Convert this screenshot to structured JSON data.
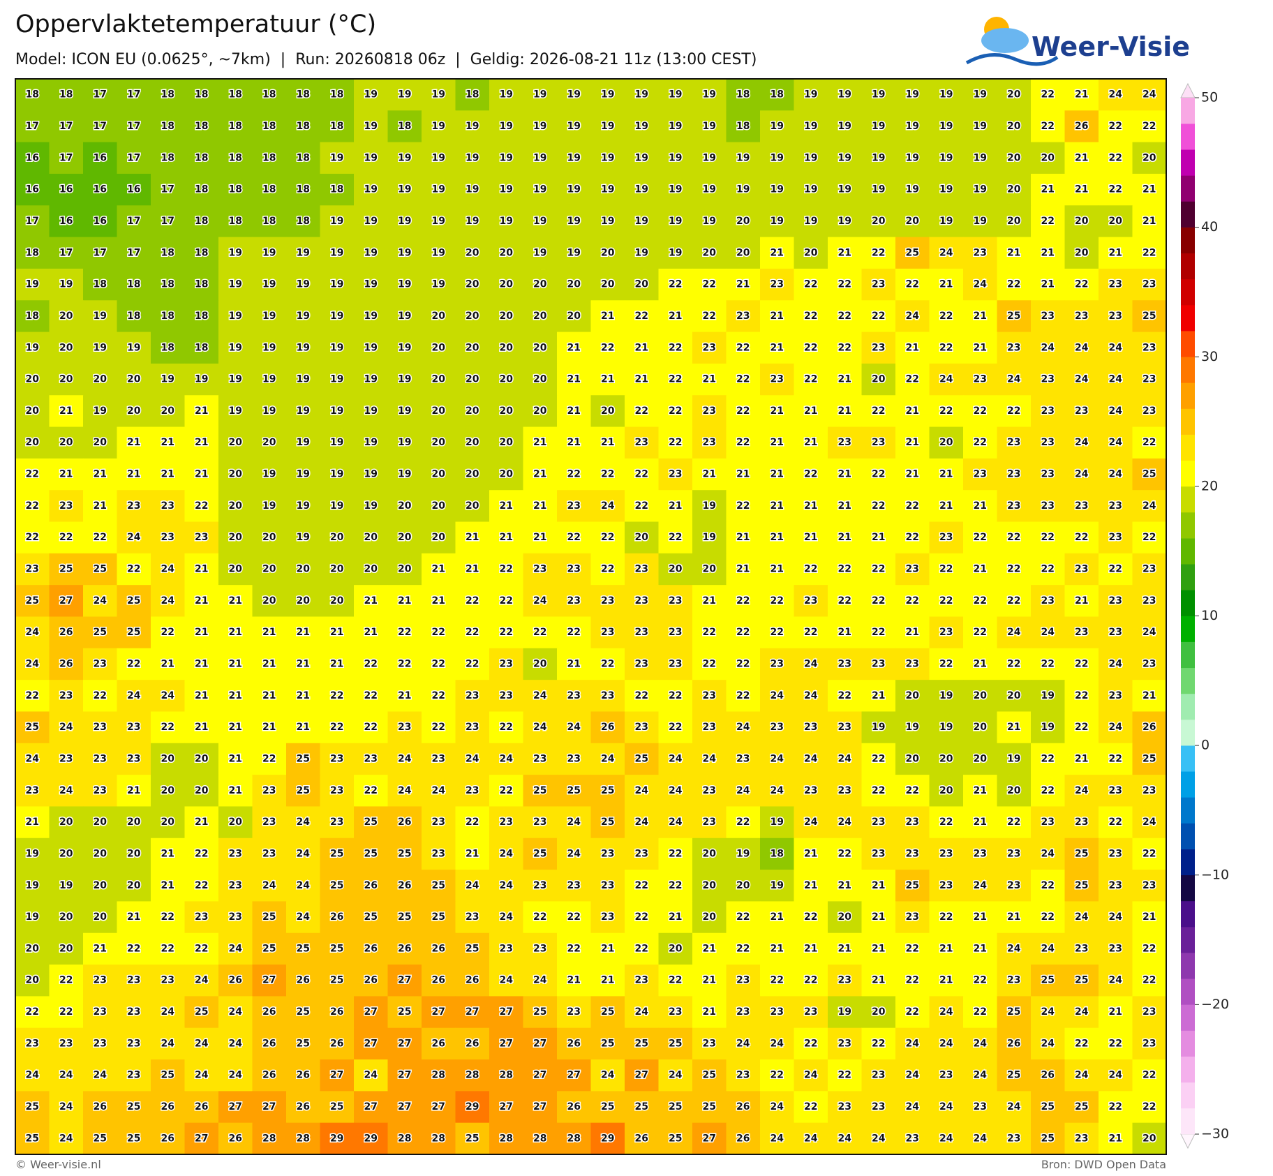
{
  "header": {
    "title": "Oppervlaktetemperatuur (°C)",
    "subtitle": "Model: ICON EU (0.0625°, ~7km)  |  Run: 20260818 06z  |  Geldig: 2026-08-21 11z (13:00 CEST)",
    "logo": "Weer-Visie"
  },
  "map": {
    "grid": [
      [
        18,
        18,
        17,
        17,
        18,
        18,
        18,
        18,
        18,
        18,
        19,
        19,
        19,
        18,
        19,
        19,
        19,
        19,
        19,
        19,
        19,
        18,
        18,
        19,
        19,
        19,
        19,
        19,
        19,
        20,
        22,
        21,
        24,
        24
      ],
      [
        17,
        17,
        17,
        17,
        18,
        18,
        18,
        18,
        18,
        18,
        19,
        18,
        19,
        19,
        19,
        19,
        19,
        19,
        19,
        19,
        19,
        18,
        19,
        19,
        19,
        19,
        19,
        19,
        19,
        20,
        22,
        26,
        22,
        22
      ],
      [
        16,
        17,
        16,
        17,
        18,
        18,
        18,
        18,
        18,
        19,
        19,
        19,
        19,
        19,
        19,
        19,
        19,
        19,
        19,
        19,
        19,
        19,
        19,
        19,
        19,
        19,
        19,
        19,
        19,
        20,
        20,
        21,
        22,
        20
      ],
      [
        16,
        16,
        16,
        16,
        17,
        18,
        18,
        18,
        18,
        18,
        19,
        19,
        19,
        19,
        19,
        19,
        19,
        19,
        19,
        19,
        19,
        19,
        19,
        19,
        19,
        19,
        19,
        19,
        19,
        20,
        21,
        21,
        22,
        21
      ],
      [
        17,
        16,
        16,
        17,
        17,
        18,
        18,
        18,
        18,
        19,
        19,
        19,
        19,
        19,
        19,
        19,
        19,
        19,
        19,
        19,
        19,
        20,
        19,
        19,
        19,
        20,
        20,
        19,
        19,
        20,
        22,
        20,
        20,
        21
      ],
      [
        18,
        17,
        17,
        17,
        18,
        18,
        19,
        19,
        19,
        19,
        19,
        19,
        19,
        20,
        20,
        19,
        19,
        20,
        19,
        19,
        20,
        20,
        21,
        20,
        21,
        22,
        25,
        24,
        23,
        21,
        21,
        20,
        21,
        22
      ],
      [
        19,
        19,
        18,
        18,
        18,
        18,
        19,
        19,
        19,
        19,
        19,
        19,
        19,
        20,
        20,
        20,
        20,
        20,
        20,
        22,
        22,
        21,
        23,
        22,
        22,
        23,
        22,
        21,
        24,
        22,
        21,
        22,
        23,
        23
      ],
      [
        18,
        20,
        19,
        18,
        18,
        18,
        19,
        19,
        19,
        19,
        19,
        19,
        20,
        20,
        20,
        20,
        20,
        21,
        22,
        21,
        22,
        23,
        21,
        22,
        22,
        22,
        24,
        22,
        21,
        25,
        23,
        23,
        23,
        25
      ],
      [
        19,
        20,
        19,
        19,
        18,
        18,
        19,
        19,
        19,
        19,
        19,
        19,
        20,
        20,
        20,
        20,
        21,
        22,
        21,
        22,
        23,
        22,
        21,
        22,
        22,
        23,
        21,
        22,
        21,
        23,
        24,
        24,
        24,
        23
      ],
      [
        20,
        20,
        20,
        20,
        19,
        19,
        19,
        19,
        19,
        19,
        19,
        19,
        20,
        20,
        20,
        20,
        21,
        21,
        21,
        22,
        21,
        22,
        23,
        22,
        21,
        20,
        22,
        24,
        23,
        24,
        23,
        24,
        24,
        23
      ],
      [
        20,
        21,
        19,
        20,
        20,
        21,
        19,
        19,
        19,
        19,
        19,
        19,
        20,
        20,
        20,
        20,
        21,
        20,
        22,
        22,
        23,
        22,
        21,
        21,
        21,
        22,
        21,
        22,
        22,
        22,
        23,
        23,
        24,
        23
      ],
      [
        20,
        20,
        20,
        21,
        21,
        21,
        20,
        20,
        19,
        19,
        19,
        19,
        20,
        20,
        20,
        21,
        21,
        21,
        23,
        22,
        23,
        22,
        21,
        21,
        23,
        23,
        21,
        20,
        22,
        23,
        23,
        24,
        24,
        22
      ],
      [
        22,
        21,
        21,
        21,
        21,
        21,
        20,
        19,
        19,
        19,
        19,
        19,
        20,
        20,
        20,
        21,
        22,
        22,
        22,
        23,
        21,
        21,
        21,
        22,
        21,
        22,
        21,
        21,
        23,
        23,
        23,
        24,
        24,
        25
      ],
      [
        22,
        23,
        21,
        23,
        23,
        22,
        20,
        19,
        19,
        19,
        19,
        20,
        20,
        20,
        21,
        21,
        23,
        24,
        22,
        21,
        19,
        22,
        21,
        21,
        21,
        22,
        22,
        21,
        21,
        23,
        23,
        23,
        23,
        24
      ],
      [
        22,
        22,
        22,
        24,
        23,
        23,
        20,
        20,
        19,
        20,
        20,
        20,
        20,
        21,
        21,
        21,
        22,
        22,
        20,
        22,
        19,
        21,
        21,
        21,
        21,
        21,
        22,
        23,
        22,
        22,
        22,
        22,
        23,
        22
      ],
      [
        23,
        25,
        25,
        22,
        24,
        21,
        20,
        20,
        20,
        20,
        20,
        20,
        21,
        21,
        22,
        23,
        23,
        22,
        23,
        20,
        20,
        21,
        21,
        22,
        22,
        22,
        23,
        22,
        21,
        22,
        22,
        23,
        22,
        23
      ],
      [
        25,
        27,
        24,
        25,
        24,
        21,
        21,
        20,
        20,
        20,
        21,
        21,
        21,
        22,
        22,
        24,
        23,
        23,
        23,
        23,
        21,
        22,
        22,
        23,
        22,
        22,
        22,
        22,
        22,
        22,
        23,
        21,
        23,
        23
      ],
      [
        24,
        26,
        25,
        25,
        22,
        21,
        21,
        21,
        21,
        21,
        21,
        22,
        22,
        22,
        22,
        22,
        22,
        23,
        23,
        23,
        22,
        22,
        22,
        22,
        21,
        22,
        21,
        23,
        22,
        24,
        24,
        23,
        23,
        24
      ],
      [
        24,
        26,
        23,
        22,
        21,
        21,
        21,
        21,
        21,
        21,
        22,
        22,
        22,
        22,
        23,
        20,
        21,
        22,
        23,
        23,
        22,
        22,
        23,
        24,
        23,
        23,
        23,
        22,
        21,
        22,
        22,
        22,
        24,
        23
      ],
      [
        22,
        23,
        22,
        24,
        24,
        21,
        21,
        21,
        21,
        22,
        22,
        21,
        22,
        23,
        23,
        24,
        23,
        23,
        22,
        22,
        23,
        22,
        24,
        24,
        22,
        21,
        20,
        19,
        20,
        20,
        19,
        22,
        23,
        21
      ],
      [
        25,
        24,
        23,
        23,
        22,
        21,
        21,
        21,
        21,
        22,
        22,
        23,
        22,
        23,
        22,
        24,
        24,
        26,
        23,
        22,
        23,
        24,
        23,
        23,
        23,
        19,
        19,
        19,
        20,
        21,
        19,
        22,
        24,
        26
      ],
      [
        24,
        23,
        23,
        23,
        20,
        20,
        21,
        22,
        25,
        23,
        23,
        24,
        23,
        24,
        24,
        23,
        23,
        24,
        25,
        24,
        24,
        23,
        24,
        24,
        24,
        22,
        20,
        20,
        20,
        19,
        22,
        21,
        22,
        25
      ],
      [
        23,
        24,
        23,
        21,
        20,
        20,
        21,
        23,
        25,
        23,
        22,
        24,
        24,
        23,
        22,
        25,
        25,
        25,
        24,
        24,
        23,
        24,
        24,
        23,
        23,
        22,
        22,
        20,
        21,
        20,
        22,
        24,
        23,
        23
      ],
      [
        21,
        20,
        20,
        20,
        20,
        21,
        20,
        23,
        24,
        23,
        25,
        26,
        23,
        22,
        23,
        23,
        24,
        25,
        24,
        24,
        23,
        22,
        19,
        24,
        24,
        23,
        23,
        22,
        21,
        22,
        23,
        23,
        22,
        24
      ],
      [
        19,
        20,
        20,
        20,
        21,
        22,
        23,
        23,
        24,
        25,
        25,
        25,
        23,
        21,
        24,
        25,
        24,
        23,
        23,
        22,
        20,
        19,
        18,
        21,
        22,
        23,
        23,
        23,
        23,
        23,
        24,
        25,
        23,
        22
      ],
      [
        19,
        19,
        20,
        20,
        21,
        22,
        23,
        24,
        24,
        25,
        26,
        26,
        25,
        24,
        24,
        23,
        23,
        23,
        22,
        22,
        20,
        20,
        19,
        21,
        21,
        21,
        25,
        23,
        24,
        23,
        22,
        25,
        23,
        23
      ],
      [
        19,
        20,
        20,
        21,
        22,
        23,
        23,
        25,
        24,
        26,
        25,
        25,
        25,
        23,
        24,
        22,
        22,
        23,
        22,
        21,
        20,
        22,
        21,
        22,
        20,
        21,
        23,
        22,
        21,
        21,
        22,
        24,
        24,
        21
      ],
      [
        20,
        20,
        21,
        22,
        22,
        22,
        24,
        25,
        25,
        25,
        26,
        26,
        26,
        25,
        23,
        23,
        22,
        21,
        22,
        20,
        21,
        22,
        21,
        21,
        21,
        21,
        22,
        21,
        21,
        24,
        24,
        23,
        23,
        22
      ],
      [
        20,
        22,
        23,
        23,
        23,
        24,
        26,
        27,
        26,
        25,
        26,
        27,
        26,
        26,
        24,
        24,
        21,
        21,
        23,
        22,
        21,
        23,
        22,
        22,
        23,
        21,
        22,
        21,
        22,
        23,
        25,
        25,
        24,
        22
      ],
      [
        22,
        22,
        23,
        23,
        24,
        25,
        24,
        26,
        25,
        26,
        27,
        25,
        27,
        27,
        27,
        25,
        23,
        25,
        24,
        23,
        21,
        23,
        23,
        23,
        19,
        20,
        22,
        24,
        22,
        25,
        24,
        24,
        21,
        23
      ],
      [
        23,
        23,
        23,
        23,
        24,
        24,
        24,
        26,
        25,
        26,
        27,
        27,
        26,
        26,
        27,
        27,
        26,
        25,
        25,
        25,
        23,
        24,
        24,
        22,
        23,
        22,
        24,
        24,
        24,
        26,
        24,
        22,
        22,
        23
      ],
      [
        24,
        24,
        24,
        23,
        25,
        24,
        24,
        26,
        26,
        27,
        24,
        27,
        28,
        28,
        28,
        27,
        27,
        24,
        27,
        24,
        25,
        23,
        22,
        24,
        22,
        23,
        24,
        23,
        24,
        25,
        26,
        24,
        24,
        22
      ],
      [
        25,
        24,
        26,
        25,
        26,
        26,
        27,
        27,
        26,
        25,
        27,
        27,
        27,
        29,
        27,
        27,
        26,
        25,
        25,
        25,
        25,
        26,
        24,
        22,
        23,
        23,
        24,
        24,
        23,
        24,
        25,
        25,
        22,
        22
      ],
      [
        25,
        24,
        25,
        25,
        26,
        27,
        26,
        28,
        28,
        29,
        29,
        28,
        28,
        25,
        28,
        28,
        28,
        29,
        26,
        25,
        27,
        26,
        24,
        24,
        24,
        24,
        23,
        24,
        24,
        23,
        25,
        23,
        21,
        20
      ]
    ]
  },
  "colorbar": {
    "lim": [
      -30,
      50
    ],
    "colors": [
      "#fde6f9",
      "#fbd0f4",
      "#f4b0ec",
      "#e48ce0",
      "#cc6cd4",
      "#b04fc2",
      "#8e38ae",
      "#6a2099",
      "#4a0f8a",
      "#140844",
      "#00208a",
      "#0050b0",
      "#0078cc",
      "#00a0e6",
      "#38c0f5",
      "#c8f8d4",
      "#a0ecb0",
      "#70d870",
      "#40c040",
      "#00b000",
      "#009000",
      "#30a010",
      "#60b800",
      "#90c800",
      "#c8dc00",
      "#ffff00",
      "#ffe400",
      "#ffc400",
      "#ffa000",
      "#ff7800",
      "#ff4c00",
      "#f00000",
      "#d00000",
      "#b00000",
      "#880000",
      "#500030",
      "#900070",
      "#c000b0",
      "#f050d8",
      "#f8a8e4"
    ],
    "ticks": [
      {
        "value": -30,
        "label": "−30"
      },
      {
        "value": -20,
        "label": "−20"
      },
      {
        "value": -10,
        "label": "−10"
      },
      0,
      10,
      20,
      30,
      40,
      50
    ]
  },
  "footer": {
    "left": "© Weer-visie.nl",
    "right": "Bron: DWD Open Data"
  }
}
